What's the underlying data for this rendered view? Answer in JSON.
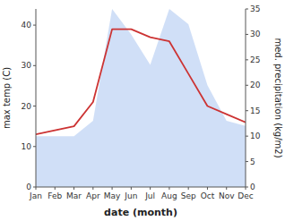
{
  "chart_data": {
    "type": "line",
    "xlabel": "date (month)",
    "ylabel": "max temp (C)",
    "y2label": "med. precipitation (kg/m2)",
    "categories": [
      "Jan",
      "Feb",
      "Mar",
      "Apr",
      "May",
      "Jun",
      "Jul",
      "Aug",
      "Sep",
      "Oct",
      "Nov",
      "Dec"
    ],
    "series": [
      {
        "type": "area",
        "axis": "y2",
        "color": "#aac4f0",
        "values": [
          10,
          10,
          10,
          13,
          35,
          30,
          24,
          35,
          32,
          20,
          13,
          12
        ]
      },
      {
        "type": "line",
        "color": "#cc3333",
        "values": [
          13,
          14,
          15,
          21,
          39,
          39,
          37,
          36,
          28,
          20,
          18,
          16
        ]
      }
    ],
    "ylim": [
      0,
      44
    ],
    "yticks": [
      0,
      10,
      20,
      30,
      40
    ],
    "y2lim": [
      0,
      35
    ],
    "y2ticks": [
      0,
      5,
      10,
      15,
      20,
      25,
      30,
      35
    ],
    "grid": false
  }
}
